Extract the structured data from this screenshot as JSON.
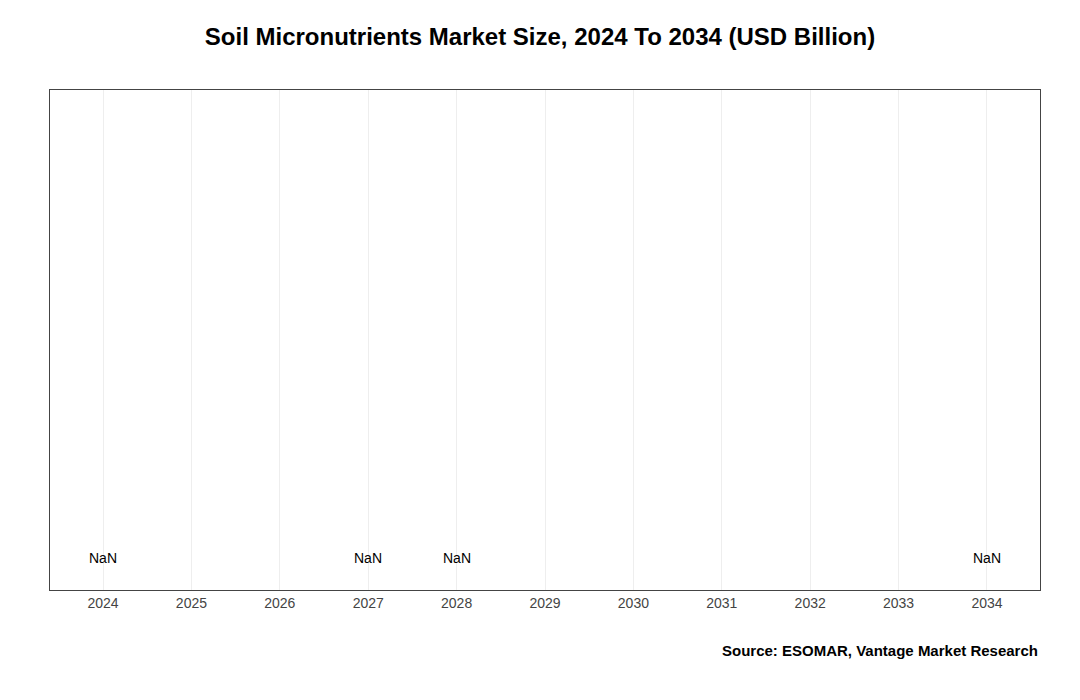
{
  "chart_data": {
    "type": "bar",
    "title": "Soil Micronutrients Market Size, 2024 To 2034 (USD Billion)",
    "x": [
      2024,
      2025,
      2026,
      2027,
      2028,
      2029,
      2030,
      2031,
      2032,
      2033,
      2034
    ],
    "values": [
      null,
      null,
      null,
      null,
      null,
      null,
      null,
      null,
      null,
      null,
      null
    ],
    "xlim": [
      2023.4,
      2034.6
    ],
    "xticks": [
      2024,
      2025,
      2026,
      2027,
      2028,
      2029,
      2030,
      2031,
      2032,
      2033,
      2034
    ],
    "ylim": [
      0,
      1
    ],
    "tick_labels": "x",
    "grid": true,
    "annotations": [
      {
        "x": 2024,
        "text": "NaN"
      },
      {
        "x": 2027,
        "text": "NaN"
      },
      {
        "x": 2028,
        "text": "NaN"
      },
      {
        "x": 2034,
        "text": "NaN"
      },
      {
        "text": "Source: ESOMAR, Vantage Market Research"
      }
    ]
  }
}
